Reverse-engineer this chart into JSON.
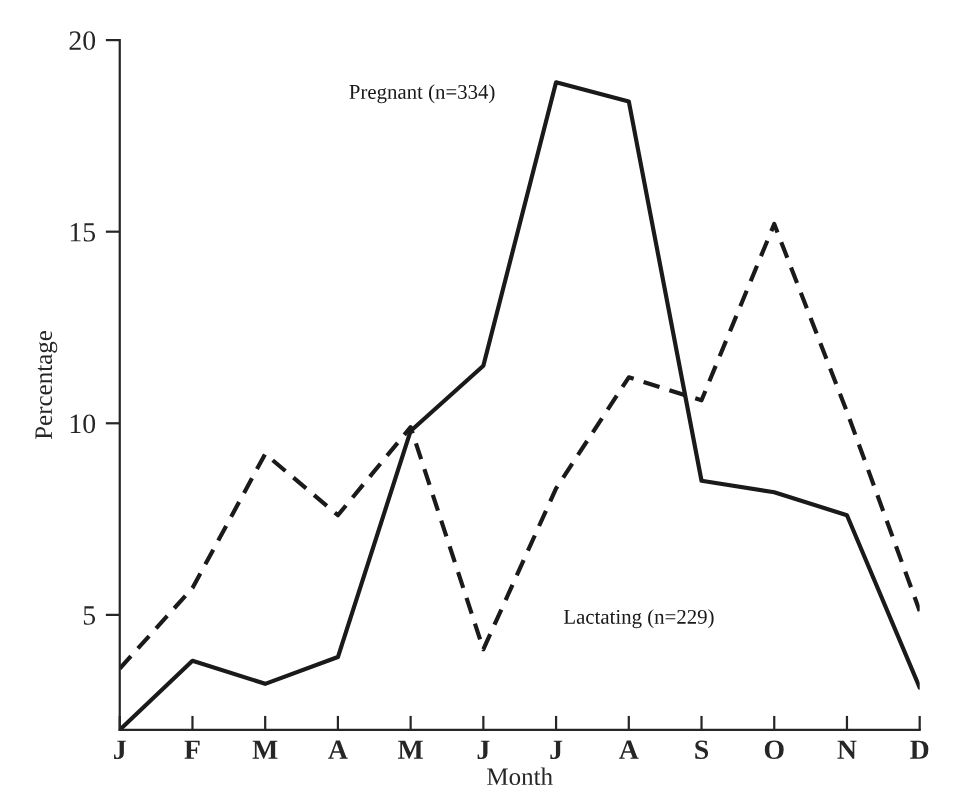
{
  "chart_data": {
    "type": "line",
    "xlabel": "Month",
    "ylabel": "Percentage",
    "categories": [
      "J",
      "F",
      "M",
      "A",
      "M",
      "J",
      "J",
      "A",
      "S",
      "O",
      "N",
      "D"
    ],
    "series": [
      {
        "name": "Pregnant (n=334)",
        "color": "#1a1a1a",
        "line_style": "solid",
        "values": [
          2.0,
          3.8,
          3.2,
          3.9,
          9.8,
          11.5,
          18.9,
          18.4,
          8.5,
          8.2,
          7.6,
          3.1
        ]
      },
      {
        "name": "Lactating (n=229)",
        "color": "#1a1a1a",
        "line_style": "dashed",
        "values": [
          3.6,
          5.7,
          9.2,
          7.6,
          9.9,
          4.1,
          8.3,
          11.2,
          10.6,
          15.2,
          10.3,
          5.1
        ]
      }
    ],
    "ylim": [
      2,
      20
    ],
    "yticks": [
      5,
      10,
      15,
      20
    ],
    "grid": false,
    "legend": false,
    "marker": "none"
  }
}
